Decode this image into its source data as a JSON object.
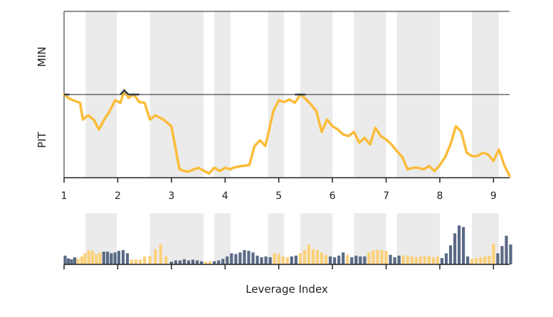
{
  "chart_data": {
    "type": "line",
    "xlabel": "Leverage Index",
    "xlim": [
      1,
      9.3
    ],
    "x_ticks": [
      1,
      2,
      3,
      4,
      5,
      6,
      7,
      8,
      9
    ],
    "y_category_labels": [
      "MIN",
      "PIT"
    ],
    "shaded_x_ranges": [
      [
        1.4,
        1.98
      ],
      [
        2.6,
        3.6
      ],
      [
        3.8,
        4.1
      ],
      [
        4.8,
        5.1
      ],
      [
        5.4,
        6.0
      ],
      [
        6.4,
        7.0
      ],
      [
        7.2,
        8.0
      ],
      [
        8.6,
        9.1
      ]
    ],
    "colors": {
      "line": "#fbbc3a",
      "line_above": "#2d3b52",
      "shade": "#ebebeb",
      "bar_dark": "#5a6a85",
      "bar_light": "#fcd07a",
      "axis": "#222222"
    },
    "top_panel": {
      "series": [
        {
          "values": [
            [
              1.0,
              1.0
            ],
            [
              1.1,
              0.95
            ],
            [
              1.3,
              0.9
            ],
            [
              1.35,
              0.7
            ],
            [
              1.45,
              0.75
            ],
            [
              1.55,
              0.7
            ],
            [
              1.65,
              0.58
            ],
            [
              1.75,
              0.7
            ],
            [
              1.85,
              0.8
            ],
            [
              1.95,
              0.93
            ],
            [
              2.05,
              0.9
            ],
            [
              2.12,
              1.05
            ],
            [
              2.2,
              0.96
            ],
            [
              2.3,
              1.0
            ],
            [
              2.4,
              0.91
            ],
            [
              2.5,
              0.9
            ],
            [
              2.6,
              0.7
            ],
            [
              2.7,
              0.75
            ],
            [
              2.85,
              0.7
            ],
            [
              3.0,
              0.62
            ],
            [
              3.15,
              0.1
            ],
            [
              3.3,
              0.07
            ],
            [
              3.5,
              0.12
            ],
            [
              3.7,
              0.05
            ],
            [
              3.8,
              0.12
            ],
            [
              3.9,
              0.08
            ],
            [
              4.0,
              0.12
            ],
            [
              4.1,
              0.1
            ],
            [
              4.15,
              0.12
            ],
            [
              4.3,
              0.14
            ],
            [
              4.45,
              0.15
            ],
            [
              4.55,
              0.38
            ],
            [
              4.65,
              0.45
            ],
            [
              4.75,
              0.38
            ],
            [
              4.9,
              0.8
            ],
            [
              5.0,
              0.93
            ],
            [
              5.1,
              0.91
            ],
            [
              5.2,
              0.94
            ],
            [
              5.3,
              0.9
            ],
            [
              5.4,
              1.0
            ],
            [
              5.5,
              0.95
            ],
            [
              5.6,
              0.88
            ],
            [
              5.7,
              0.8
            ],
            [
              5.8,
              0.55
            ],
            [
              5.9,
              0.7
            ],
            [
              6.0,
              0.62
            ],
            [
              6.1,
              0.58
            ],
            [
              6.2,
              0.52
            ],
            [
              6.3,
              0.5
            ],
            [
              6.4,
              0.55
            ],
            [
              6.5,
              0.42
            ],
            [
              6.6,
              0.48
            ],
            [
              6.7,
              0.4
            ],
            [
              6.8,
              0.6
            ],
            [
              6.9,
              0.5
            ],
            [
              7.0,
              0.46
            ],
            [
              7.1,
              0.4
            ],
            [
              7.2,
              0.32
            ],
            [
              7.3,
              0.25
            ],
            [
              7.4,
              0.1
            ],
            [
              7.5,
              0.12
            ],
            [
              7.6,
              0.12
            ],
            [
              7.7,
              0.1
            ],
            [
              7.8,
              0.14
            ],
            [
              7.9,
              0.08
            ],
            [
              8.0,
              0.15
            ],
            [
              8.1,
              0.25
            ],
            [
              8.2,
              0.4
            ],
            [
              8.3,
              0.62
            ],
            [
              8.4,
              0.55
            ],
            [
              8.5,
              0.3
            ],
            [
              8.6,
              0.26
            ],
            [
              8.7,
              0.26
            ],
            [
              8.8,
              0.3
            ],
            [
              8.9,
              0.28
            ],
            [
              9.0,
              0.2
            ],
            [
              9.1,
              0.34
            ],
            [
              9.2,
              0.15
            ],
            [
              9.3,
              0.02
            ]
          ]
        }
      ]
    },
    "bottom_panel": {
      "type": "bar",
      "bars": [
        [
          1.02,
          0.22,
          "dark"
        ],
        [
          1.08,
          0.15,
          "dark"
        ],
        [
          1.14,
          0.13,
          "dark"
        ],
        [
          1.2,
          0.18,
          "dark"
        ],
        [
          1.26,
          0.14,
          "light"
        ],
        [
          1.33,
          0.2,
          "light"
        ],
        [
          1.39,
          0.28,
          "light"
        ],
        [
          1.46,
          0.36,
          "light"
        ],
        [
          1.53,
          0.34,
          "light"
        ],
        [
          1.6,
          0.26,
          "light"
        ],
        [
          1.67,
          0.3,
          "light"
        ],
        [
          1.74,
          0.32,
          "dark"
        ],
        [
          1.81,
          0.32,
          "dark"
        ],
        [
          1.88,
          0.28,
          "dark"
        ],
        [
          1.95,
          0.3,
          "dark"
        ],
        [
          2.02,
          0.34,
          "dark"
        ],
        [
          2.1,
          0.36,
          "dark"
        ],
        [
          2.18,
          0.28,
          "dark"
        ],
        [
          2.26,
          0.12,
          "light"
        ],
        [
          2.34,
          0.13,
          "light"
        ],
        [
          2.42,
          0.12,
          "light"
        ],
        [
          2.5,
          0.2,
          "light"
        ],
        [
          2.6,
          0.22,
          "light"
        ],
        [
          2.7,
          0.38,
          "light"
        ],
        [
          2.8,
          0.5,
          "light"
        ],
        [
          2.9,
          0.2,
          "light"
        ],
        [
          3.0,
          0.07,
          "dark"
        ],
        [
          3.08,
          0.1,
          "dark"
        ],
        [
          3.16,
          0.1,
          "dark"
        ],
        [
          3.24,
          0.13,
          "dark"
        ],
        [
          3.32,
          0.1,
          "dark"
        ],
        [
          3.4,
          0.12,
          "dark"
        ],
        [
          3.48,
          0.1,
          "dark"
        ],
        [
          3.56,
          0.08,
          "dark"
        ],
        [
          3.64,
          0.07,
          "light"
        ],
        [
          3.72,
          0.08,
          "light"
        ],
        [
          3.8,
          0.08,
          "dark"
        ],
        [
          3.88,
          0.1,
          "dark"
        ],
        [
          3.96,
          0.14,
          "dark"
        ],
        [
          4.04,
          0.2,
          "dark"
        ],
        [
          4.12,
          0.28,
          "dark"
        ],
        [
          4.2,
          0.26,
          "dark"
        ],
        [
          4.28,
          0.3,
          "dark"
        ],
        [
          4.36,
          0.36,
          "dark"
        ],
        [
          4.44,
          0.34,
          "dark"
        ],
        [
          4.52,
          0.3,
          "dark"
        ],
        [
          4.6,
          0.22,
          "dark"
        ],
        [
          4.68,
          0.18,
          "dark"
        ],
        [
          4.76,
          0.2,
          "dark"
        ],
        [
          4.84,
          0.18,
          "dark"
        ],
        [
          4.92,
          0.28,
          "light"
        ],
        [
          5.0,
          0.26,
          "light"
        ],
        [
          5.08,
          0.2,
          "light"
        ],
        [
          5.16,
          0.18,
          "light"
        ],
        [
          5.24,
          0.2,
          "dark"
        ],
        [
          5.32,
          0.22,
          "dark"
        ],
        [
          5.4,
          0.28,
          "light"
        ],
        [
          5.48,
          0.36,
          "light"
        ],
        [
          5.56,
          0.5,
          "light"
        ],
        [
          5.64,
          0.38,
          "light"
        ],
        [
          5.72,
          0.36,
          "light"
        ],
        [
          5.8,
          0.3,
          "light"
        ],
        [
          5.88,
          0.24,
          "light"
        ],
        [
          5.96,
          0.2,
          "dark"
        ],
        [
          6.04,
          0.18,
          "dark"
        ],
        [
          6.12,
          0.22,
          "dark"
        ],
        [
          6.2,
          0.3,
          "dark"
        ],
        [
          6.28,
          0.24,
          "light"
        ],
        [
          6.36,
          0.18,
          "dark"
        ],
        [
          6.44,
          0.22,
          "dark"
        ],
        [
          6.52,
          0.2,
          "dark"
        ],
        [
          6.6,
          0.2,
          "dark"
        ],
        [
          6.68,
          0.3,
          "light"
        ],
        [
          6.76,
          0.36,
          "light"
        ],
        [
          6.84,
          0.36,
          "light"
        ],
        [
          6.92,
          0.36,
          "light"
        ],
        [
          7.0,
          0.34,
          "light"
        ],
        [
          7.08,
          0.24,
          "dark"
        ],
        [
          7.16,
          0.18,
          "dark"
        ],
        [
          7.24,
          0.22,
          "dark"
        ],
        [
          7.32,
          0.22,
          "light"
        ],
        [
          7.4,
          0.22,
          "light"
        ],
        [
          7.48,
          0.2,
          "light"
        ],
        [
          7.56,
          0.18,
          "light"
        ],
        [
          7.64,
          0.2,
          "light"
        ],
        [
          7.72,
          0.2,
          "light"
        ],
        [
          7.8,
          0.22,
          "light"
        ],
        [
          7.88,
          0.18,
          "light"
        ],
        [
          7.96,
          0.2,
          "light"
        ],
        [
          8.04,
          0.16,
          "dark"
        ],
        [
          8.12,
          0.28,
          "dark"
        ],
        [
          8.2,
          0.48,
          "dark"
        ],
        [
          8.28,
          0.78,
          "dark"
        ],
        [
          8.36,
          0.98,
          "dark"
        ],
        [
          8.44,
          0.94,
          "dark"
        ],
        [
          8.52,
          0.2,
          "dark"
        ],
        [
          8.6,
          0.14,
          "light"
        ],
        [
          8.68,
          0.16,
          "light"
        ],
        [
          8.76,
          0.18,
          "light"
        ],
        [
          8.84,
          0.2,
          "light"
        ],
        [
          8.92,
          0.22,
          "light"
        ],
        [
          9.0,
          0.52,
          "light"
        ],
        [
          9.08,
          0.28,
          "dark"
        ],
        [
          9.16,
          0.46,
          "dark"
        ],
        [
          9.24,
          0.72,
          "dark"
        ],
        [
          9.32,
          0.5,
          "dark"
        ]
      ]
    }
  }
}
